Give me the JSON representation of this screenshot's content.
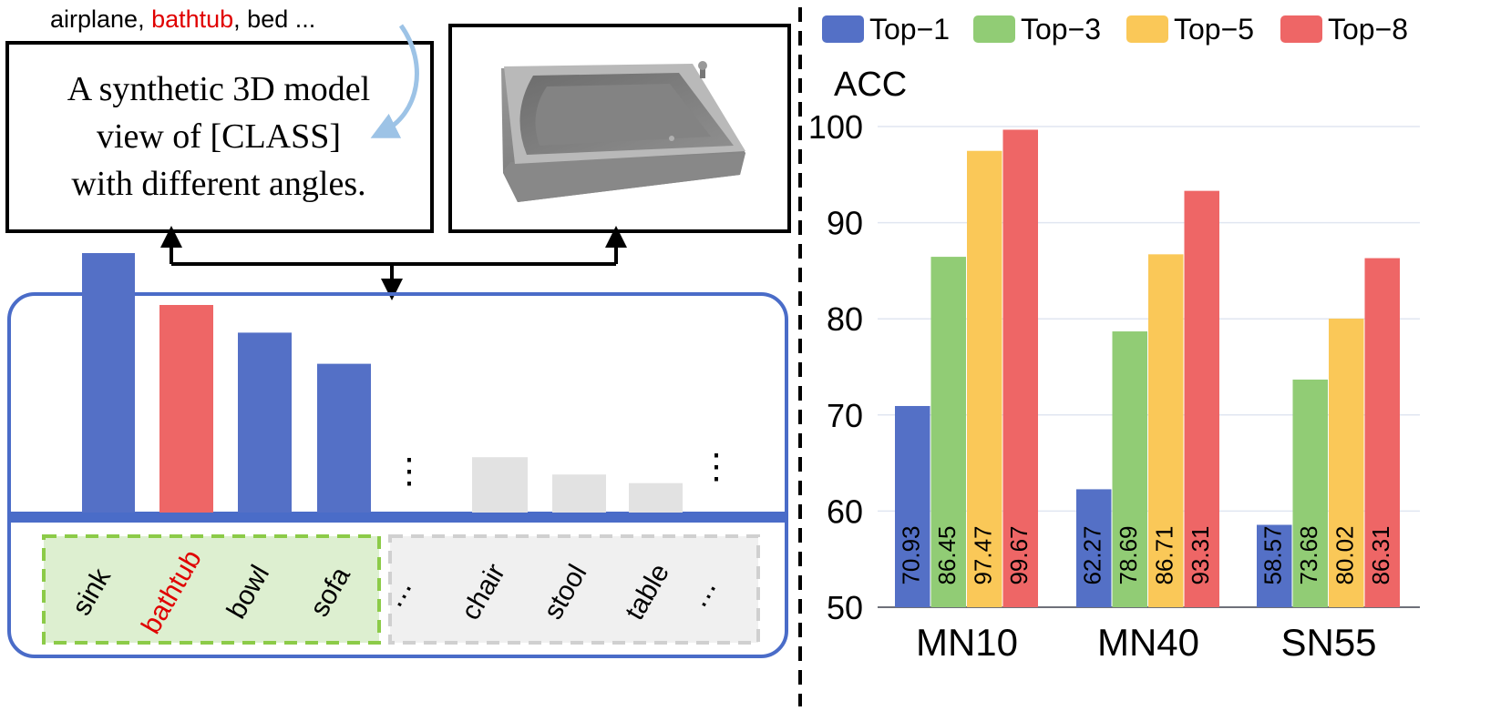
{
  "prompt": {
    "class_list_pre": "airplane, ",
    "class_highlight": "bathtub",
    "class_list_post": ", bed ...",
    "template_line1": "A synthetic 3D model",
    "template_line2": "view of  [CLASS]",
    "template_line3": "with different angles."
  },
  "colors": {
    "top1": "#5470C6",
    "top3": "#91CC75",
    "top5": "#FAC858",
    "top8": "#EE6666",
    "highlight": "#E00000",
    "frame_blue": "#5470C6"
  },
  "render_image": {
    "icon": "bathtub-3d-render"
  },
  "prediction_panel": {
    "bars": [
      {
        "label": "sink",
        "score": 0.75,
        "kind": "top"
      },
      {
        "label": "bathtub",
        "score": 0.6,
        "kind": "gt"
      },
      {
        "label": "bowl",
        "score": 0.52,
        "kind": "top"
      },
      {
        "label": "sofa",
        "score": 0.43,
        "kind": "top"
      },
      {
        "label": "chair",
        "score": 0.16,
        "kind": "other"
      },
      {
        "label": "stool",
        "score": 0.11,
        "kind": "other"
      },
      {
        "label": "table",
        "score": 0.085,
        "kind": "other"
      }
    ],
    "ellipsis": "⋮",
    "hellipsis": "⋯"
  },
  "chart_data": {
    "type": "bar",
    "ylabel": "ACC",
    "ylim": [
      50,
      100
    ],
    "yticks": [
      50,
      60,
      70,
      80,
      90,
      100
    ],
    "grid": true,
    "legend_position": "top",
    "categories": [
      "MN10",
      "MN40",
      "SN55"
    ],
    "series": [
      {
        "name": "Top−1",
        "color": "#5470C6",
        "values": [
          70.93,
          62.27,
          58.57
        ],
        "labels": [
          "70.93",
          "62.27",
          "58.57"
        ]
      },
      {
        "name": "Top−3",
        "color": "#91CC75",
        "values": [
          86.45,
          78.69,
          73.68
        ],
        "labels": [
          "86.45",
          "78.69",
          "73.68"
        ]
      },
      {
        "name": "Top−5",
        "color": "#FAC858",
        "values": [
          97.47,
          86.71,
          80.02
        ],
        "labels": [
          "97.47",
          "86.71",
          "80.02"
        ]
      },
      {
        "name": "Top−8",
        "color": "#EE6666",
        "values": [
          99.67,
          93.31,
          86.31
        ],
        "labels": [
          "99.67",
          "93.31",
          "86.31"
        ]
      }
    ]
  }
}
